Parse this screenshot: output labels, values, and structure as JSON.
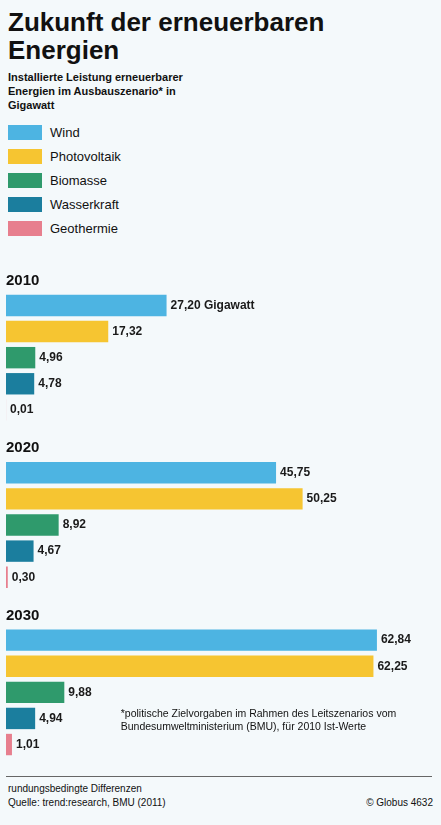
{
  "header": {
    "title": "Zukunft der erneuerbaren Energien",
    "subtitle": "Installierte Leistung erneuerbarer Energien im Ausbauszenario* in Gigawatt"
  },
  "chart_data": {
    "type": "bar",
    "orientation": "horizontal",
    "categories": [
      "2010",
      "2020",
      "2030"
    ],
    "series": [
      {
        "name": "Wind",
        "color": "#4db4e2",
        "values": [
          27.2,
          45.75,
          62.84
        ],
        "value_labels": [
          "27,20 Gigawatt",
          "45,75",
          "62,84"
        ]
      },
      {
        "name": "Photovoltaik",
        "color": "#f6c531",
        "values": [
          17.32,
          50.25,
          62.25
        ],
        "value_labels": [
          "17,32",
          "50,25",
          "62,25"
        ]
      },
      {
        "name": "Biomasse",
        "color": "#2f9a6c",
        "values": [
          4.96,
          8.92,
          9.88
        ],
        "value_labels": [
          "4,96",
          "8,92",
          "9,88"
        ]
      },
      {
        "name": "Wasserkraft",
        "color": "#1b7e9e",
        "values": [
          4.78,
          4.67,
          4.94
        ],
        "value_labels": [
          "4,78",
          "4,67",
          "4,94"
        ]
      },
      {
        "name": "Geothermie",
        "color": "#e77f8e",
        "values": [
          0.01,
          0.3,
          1.01
        ],
        "value_labels": [
          "0,01",
          "0,30",
          "1,01"
        ]
      }
    ],
    "xlim": [
      0,
      72
    ],
    "grid": false,
    "tick_labels": false,
    "data_labels": true,
    "legend": "top-left"
  },
  "footnote": "*politische Zielvorgaben im Rahmen des Leitszenarios vom Bundesumweltministerium (BMU), für 2010 Ist-Werte",
  "footer": {
    "note": "rundungsbedingte Differenzen",
    "source": "Quelle: trend:research, BMU (2011)",
    "credit": "© Globus 4632"
  }
}
